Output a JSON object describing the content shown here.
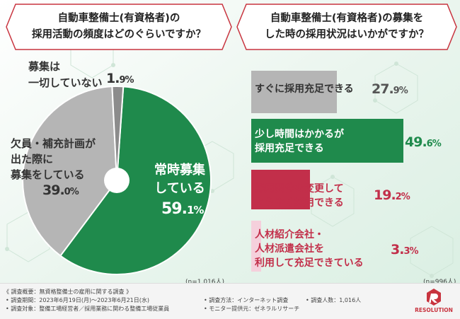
{
  "left_title": "自動車整備士(有資格者)の\n採用活動の頻度はどのぐらいですか？",
  "right_title": "自動車整備士(有資格者)の募集を\nした時の採用状況はいかがですか？",
  "chart_data": [
    {
      "type": "pie",
      "title": "自動車整備士(有資格者)の採用活動の頻度はどのぐらいですか？",
      "categories": [
        "常時募集している",
        "欠員・補充計画が出た際に募集をしている",
        "募集は一切していない"
      ],
      "values": [
        59.1,
        39.0,
        1.9
      ],
      "colors": [
        "#1f8a4c",
        "#b5b5b5",
        "#8c8c8c"
      ],
      "labels": [
        "常時募集\nしている",
        "欠員・補充計画が\n出た際に\n募集をしている",
        "募集は\n一切していない"
      ],
      "value_text": [
        "59.1%",
        "39.0%",
        "1.9%"
      ],
      "note": "(n=1,016人)"
    },
    {
      "type": "bar",
      "orientation": "horizontal",
      "title": "自動車整備士(有資格者)の募集をした時の採用状況はいかがですか？",
      "categories": [
        "すぐに採用充足できる",
        "少し時間はかかるが採用充足できる",
        "採用要件を変更してようやく採用できる",
        "人材紹介会社・人材派遣会社を利用して充足できている"
      ],
      "values": [
        27.9,
        49.6,
        19.2,
        3.3
      ],
      "colors": [
        "#b5b5b5",
        "#1f8a4c",
        "#c22f4a",
        "#f5d0dc"
      ],
      "labels": [
        "すぐに採用充足できる",
        "少し時間はかかるが\n採用充足できる",
        "採用要件を変更して\nようやく採用できる",
        "人材紹介会社・\n人材派遣会社を\n利用して充足できている"
      ],
      "value_text": [
        "27.9%",
        "49.6%",
        "19.2%",
        "3.3%"
      ],
      "note": "(n=996人)"
    }
  ],
  "footer": {
    "heading": "《 調査概要：無資格整備士の雇用に関する調査 》",
    "period": "• 調査期間：2023年6月19日(月)～2023年6月21日(水)",
    "method": "• 調査方法：インターネット調査",
    "count": "• 調査人数：1,016人",
    "target": "• 調査対象：整備工場経営者／採用業務に関わる整備工場従業員",
    "provider": "• モニター提供元：ゼネラルリサーチ"
  },
  "logo_text": "RESOLUTION"
}
